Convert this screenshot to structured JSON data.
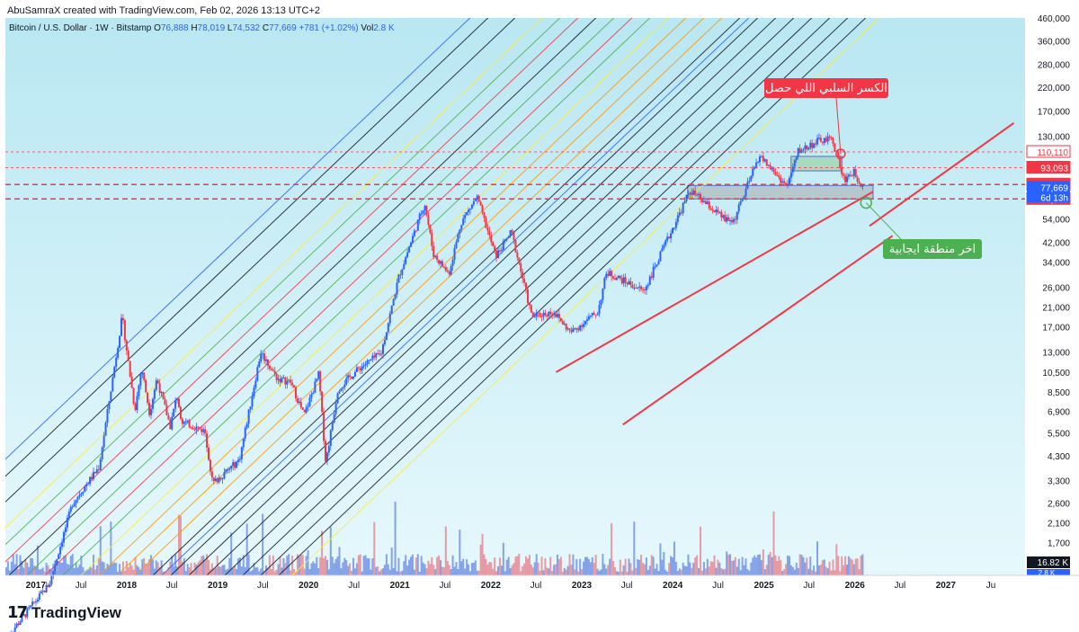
{
  "header": {
    "credit": "AbuSamraX created with TradingView.com, Feb 02, 2026 13:13 UTC+2",
    "symbol": "Bitcoin / U.S. Dollar · 1W · Bitstamp",
    "open_label": "O",
    "open": "76,888",
    "high_label": "H",
    "high": "78,019",
    "low_label": "L",
    "low": "74,532",
    "close_label": "C",
    "close": "77,669",
    "change": "+781 (+1.02%)",
    "vol_label": "Vol",
    "vol": "2.8 K"
  },
  "footer": {
    "logo_mark": "17",
    "logo_text": "TradingView"
  },
  "colors": {
    "background": "#c9eef7",
    "up": "#2962ff",
    "down": "#f23645",
    "fib_red": "#f23645",
    "fib_orange": "#ff9800",
    "fib_yellow": "#ffeb3b",
    "fib_green": "#4caf50",
    "fib_black": "#131722",
    "fib_blue": "#2962ff"
  },
  "chart_data": {
    "type": "candlestick",
    "title": "",
    "symbol": "Bitcoin / U.S. Dollar",
    "timeframe": "1W",
    "exchange": "Bitstamp",
    "y_scale": "log",
    "ylim": [
      1200,
      460000
    ],
    "xlim": [
      "2016-09-01",
      "2027-11-15"
    ],
    "y_ticks": [
      "460,000",
      "360,000",
      "280,000",
      "220,000",
      "170,000",
      "130,000",
      "54,000",
      "42,000",
      "34,000",
      "26,000",
      "21,000",
      "17,000",
      "13,000",
      "10,500",
      "8,500",
      "6,900",
      "5,500",
      "4,300",
      "3,300",
      "2,600",
      "2,100",
      "1,700"
    ],
    "x_ticks": [
      {
        "label": "2017",
        "date": "2017-01-01"
      },
      {
        "label": "Jul",
        "date": "2017-07-01"
      },
      {
        "label": "2018",
        "date": "2018-01-01"
      },
      {
        "label": "Jul",
        "date": "2018-07-01"
      },
      {
        "label": "2019",
        "date": "2019-01-01"
      },
      {
        "label": "Jul",
        "date": "2019-07-01"
      },
      {
        "label": "2020",
        "date": "2020-01-01"
      },
      {
        "label": "Jul",
        "date": "2020-07-01"
      },
      {
        "label": "2021",
        "date": "2021-01-01"
      },
      {
        "label": "Jul",
        "date": "2021-07-01"
      },
      {
        "label": "2022",
        "date": "2022-01-01"
      },
      {
        "label": "Jul",
        "date": "2022-07-01"
      },
      {
        "label": "2023",
        "date": "2023-01-01"
      },
      {
        "label": "Jul",
        "date": "2023-07-01"
      },
      {
        "label": "2024",
        "date": "2024-01-01"
      },
      {
        "label": "Jul",
        "date": "2024-07-01"
      },
      {
        "label": "2025",
        "date": "2025-01-01"
      },
      {
        "label": "Jul",
        "date": "2025-07-01"
      },
      {
        "label": "2026",
        "date": "2026-01-01"
      },
      {
        "label": "Jul",
        "date": "2026-07-01"
      },
      {
        "label": "2027",
        "date": "2027-01-01"
      },
      {
        "label": "Ju",
        "date": "2027-07-01"
      }
    ],
    "price_path": [
      [
        "2016-09-01",
        600
      ],
      [
        "2017-03-01",
        1100
      ],
      [
        "2017-06-01",
        2600
      ],
      [
        "2017-09-15",
        3800
      ],
      [
        "2017-12-17",
        19000
      ],
      [
        "2018-02-06",
        7000
      ],
      [
        "2018-03-05",
        11000
      ],
      [
        "2018-04-06",
        6800
      ],
      [
        "2018-05-05",
        9800
      ],
      [
        "2018-06-28",
        5900
      ],
      [
        "2018-07-25",
        8200
      ],
      [
        "2018-08-14",
        6200
      ],
      [
        "2018-11-14",
        5600
      ],
      [
        "2018-12-15",
        3200
      ],
      [
        "2019-04-01",
        4100
      ],
      [
        "2019-06-26",
        13000
      ],
      [
        "2019-09-01",
        9800
      ],
      [
        "2019-10-26",
        9400
      ],
      [
        "2019-12-17",
        6600
      ],
      [
        "2020-02-14",
        10300
      ],
      [
        "2020-03-13",
        4000
      ],
      [
        "2020-05-01",
        8800
      ],
      [
        "2020-07-27",
        11000
      ],
      [
        "2020-10-21",
        12800
      ],
      [
        "2020-12-31",
        29000
      ],
      [
        "2021-04-14",
        64000
      ],
      [
        "2021-05-19",
        37000
      ],
      [
        "2021-07-20",
        30000
      ],
      [
        "2021-09-07",
        52000
      ],
      [
        "2021-11-10",
        68000
      ],
      [
        "2022-01-24",
        36000
      ],
      [
        "2022-03-28",
        47000
      ],
      [
        "2022-06-18",
        19000
      ],
      [
        "2022-09-13",
        20000
      ],
      [
        "2022-11-21",
        16000
      ],
      [
        "2023-03-10",
        20000
      ],
      [
        "2023-04-14",
        30500
      ],
      [
        "2023-09-11",
        25000
      ],
      [
        "2023-12-01",
        40000
      ],
      [
        "2024-03-14",
        73000
      ],
      [
        "2024-08-05",
        53000
      ],
      [
        "2024-09-06",
        53000
      ],
      [
        "2024-12-17",
        106000
      ],
      [
        "2025-04-07",
        76000
      ],
      [
        "2025-05-22",
        111000
      ],
      [
        "2025-08-14",
        124000
      ],
      [
        "2025-10-06",
        126000
      ],
      [
        "2025-11-21",
        82000
      ],
      [
        "2025-12-30",
        89000
      ],
      [
        "2026-02-01",
        77669
      ]
    ],
    "volume_scale_max": "16.82 K",
    "fib_channel": {
      "direction": "rising",
      "scale": "log",
      "levels": [
        {
          "color": "#2962ff"
        },
        {
          "color": "#ffeb3b"
        },
        {
          "color": "#131722"
        },
        {
          "color": "#131722"
        },
        {
          "color": "#131722"
        },
        {
          "color": "#131722"
        },
        {
          "color": "#131722"
        },
        {
          "color": "#131722"
        },
        {
          "color": "#131722"
        },
        {
          "color": "#131722"
        },
        {
          "color": "#ff9800"
        },
        {
          "color": "#ff9800"
        },
        {
          "color": "#ff9800"
        },
        {
          "color": "#ffeb3b"
        },
        {
          "color": "#4caf50"
        },
        {
          "color": "#f23645"
        },
        {
          "color": "#4caf50"
        },
        {
          "color": "#131722"
        },
        {
          "color": "#f23645"
        },
        {
          "color": "#4caf50"
        },
        {
          "color": "#ffeb3b"
        },
        {
          "color": "#131722"
        },
        {
          "color": "#131722"
        },
        {
          "color": "#2962ff"
        }
      ]
    },
    "horizontal_levels": [
      {
        "price": 110110,
        "label": "110,110",
        "color": "#f23645",
        "style": "dashed"
      },
      {
        "price": 93093,
        "label": "93,093",
        "color": "#f23645",
        "style": "dashed"
      },
      {
        "price": 77777,
        "label": "77,777",
        "color": "#f23645",
        "style": "dashed"
      },
      {
        "price": 66666,
        "label": "66,666",
        "color": "#f23645",
        "style": "dashed"
      }
    ],
    "price_marker": {
      "price": 77669,
      "label": "77,669",
      "countdown": "6d 13h"
    },
    "volume_marker": {
      "label": "16.82 K"
    },
    "volume_marker_clipped": "2.8 K",
    "zones": [
      {
        "from": "2024-03-01",
        "to": "2026-03-15",
        "top": 77000,
        "bottom": 66666,
        "color": "#9e9e9e"
      },
      {
        "from": "2025-04-20",
        "to": "2025-11-10",
        "top": 105000,
        "bottom": 90000,
        "color": "#81c784"
      }
    ],
    "trendlines": [
      {
        "from": [
          "2022-09-20",
          10500
        ],
        "to": [
          "2026-03-15",
          72000
        ],
        "color": "#f23645"
      },
      {
        "from": [
          "2023-06-15",
          6000
        ],
        "to": [
          "2026-06-01",
          45000
        ],
        "color": "#f23645"
      },
      {
        "from": [
          "2026-03-01",
          50000
        ],
        "to": [
          "2027-10-01",
          150000
        ],
        "color": "#f23645"
      }
    ],
    "annotations": [
      {
        "text": "الكسر السلبي اللي حصل",
        "color": "#f23645",
        "points_to": [
          "2025-11-05",
          108000
        ]
      },
      {
        "text": "اخر منطقة ايجابية",
        "color": "#4caf50",
        "points_to": [
          "2026-02-15",
          64000
        ]
      }
    ]
  }
}
